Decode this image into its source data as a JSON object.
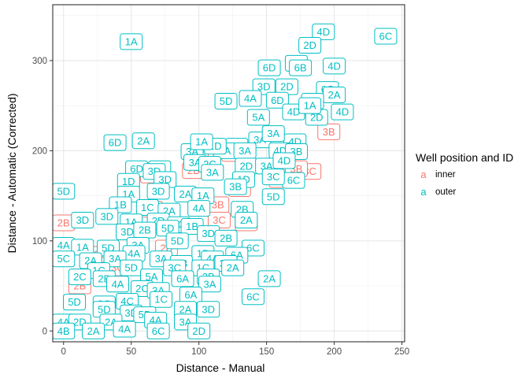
{
  "chart_data": {
    "type": "scatter",
    "title": "",
    "xlabel": "Distance - Manual",
    "ylabel": "Distance - Automatic (Corrected)",
    "xlim": [
      -8,
      252
    ],
    "ylim": [
      -12,
      362
    ],
    "x_ticks": [
      0,
      50,
      100,
      150,
      200,
      250
    ],
    "y_ticks": [
      0,
      100,
      200,
      300
    ],
    "x_tick_labels": [
      "0",
      "50",
      "100",
      "150",
      "200",
      "250"
    ],
    "y_tick_labels": [
      "0",
      "100",
      "200",
      "300"
    ],
    "grid": true,
    "legend": {
      "title": "Well position and ID",
      "placement": "right",
      "key_glyph": "a",
      "entries": [
        {
          "label": "inner",
          "color": "#F8766D"
        },
        {
          "label": "outer",
          "color": "#00BFC4"
        }
      ]
    },
    "colors": {
      "inner": "#F8766D",
      "outer": "#00BFC4"
    },
    "series": [
      {
        "name": "inner",
        "points": [
          {
            "x": 0,
            "y": 120,
            "label": "2B"
          },
          {
            "x": 27,
            "y": 85,
            "label": "2B"
          },
          {
            "x": 65,
            "y": 173,
            "label": "3B"
          },
          {
            "x": 65,
            "y": 135,
            "label": "4C"
          },
          {
            "x": 76,
            "y": 92,
            "label": "2B"
          },
          {
            "x": 96,
            "y": 178,
            "label": "2B"
          },
          {
            "x": 114,
            "y": 140,
            "label": "3B"
          },
          {
            "x": 115,
            "y": 123,
            "label": "3C"
          },
          {
            "x": 115,
            "y": 200,
            "label": "3B"
          },
          {
            "x": 125,
            "y": 197,
            "label": "3B"
          },
          {
            "x": 130,
            "y": 158,
            "label": "3C"
          },
          {
            "x": 160,
            "y": 168,
            "label": "3B"
          },
          {
            "x": 182,
            "y": 177,
            "label": "3C"
          },
          {
            "x": 196,
            "y": 221,
            "label": "3B"
          },
          {
            "x": 172,
            "y": 180,
            "label": "3B"
          },
          {
            "x": 88,
            "y": 60,
            "label": "2B"
          },
          {
            "x": 12,
            "y": 50,
            "label": "2B"
          },
          {
            "x": 40,
            "y": 70,
            "label": "3C"
          },
          {
            "x": 55,
            "y": 110,
            "label": "3B"
          },
          {
            "x": 135,
            "y": 120,
            "label": "4C"
          }
        ]
      },
      {
        "name": "outer",
        "points": [
          {
            "x": 50,
            "y": 321,
            "label": "1A"
          },
          {
            "x": 238,
            "y": 327,
            "label": "6C"
          },
          {
            "x": 192,
            "y": 332,
            "label": "4D"
          },
          {
            "x": 182,
            "y": 317,
            "label": "2D"
          },
          {
            "x": 172,
            "y": 297,
            "label": "6D"
          },
          {
            "x": 175,
            "y": 292,
            "label": "6B"
          },
          {
            "x": 200,
            "y": 294,
            "label": "4D"
          },
          {
            "x": 152,
            "y": 292,
            "label": "6D"
          },
          {
            "x": 148,
            "y": 271,
            "label": "3D"
          },
          {
            "x": 165,
            "y": 271,
            "label": "2D"
          },
          {
            "x": 195,
            "y": 268,
            "label": "6C"
          },
          {
            "x": 200,
            "y": 262,
            "label": "2A"
          },
          {
            "x": 138,
            "y": 258,
            "label": "4A"
          },
          {
            "x": 120,
            "y": 255,
            "label": "5D"
          },
          {
            "x": 158,
            "y": 256,
            "label": "6D"
          },
          {
            "x": 184,
            "y": 255,
            "label": "4A"
          },
          {
            "x": 170,
            "y": 243,
            "label": "4D"
          },
          {
            "x": 206,
            "y": 243,
            "label": "4D"
          },
          {
            "x": 187,
            "y": 237,
            "label": "2D"
          },
          {
            "x": 144,
            "y": 237,
            "label": "5A"
          },
          {
            "x": 182,
            "y": 250,
            "label": "1A"
          },
          {
            "x": 145,
            "y": 212,
            "label": "3A"
          },
          {
            "x": 171,
            "y": 210,
            "label": "4D"
          },
          {
            "x": 155,
            "y": 219,
            "label": "3A"
          },
          {
            "x": 128,
            "y": 205,
            "label": "2B"
          },
          {
            "x": 38,
            "y": 209,
            "label": "6D"
          },
          {
            "x": 59,
            "y": 211,
            "label": "2A"
          },
          {
            "x": 95,
            "y": 199,
            "label": "3A"
          },
          {
            "x": 119,
            "y": 200,
            "label": "2A"
          },
          {
            "x": 112,
            "y": 205,
            "label": "1D"
          },
          {
            "x": 102,
            "y": 210,
            "label": "1A"
          },
          {
            "x": 160,
            "y": 200,
            "label": "4D"
          },
          {
            "x": 172,
            "y": 199,
            "label": "3B"
          },
          {
            "x": 134,
            "y": 200,
            "label": "3A"
          },
          {
            "x": 97,
            "y": 187,
            "label": "3A"
          },
          {
            "x": 108,
            "y": 185,
            "label": "2C"
          },
          {
            "x": 135,
            "y": 183,
            "label": "2D"
          },
          {
            "x": 150,
            "y": 183,
            "label": "3A"
          },
          {
            "x": 163,
            "y": 189,
            "label": "4D"
          },
          {
            "x": 54,
            "y": 180,
            "label": "6D"
          },
          {
            "x": 71,
            "y": 180,
            "label": "3D"
          },
          {
            "x": 67,
            "y": 177,
            "label": "3D"
          },
          {
            "x": 48,
            "y": 166,
            "label": "1D"
          },
          {
            "x": 75,
            "y": 168,
            "label": "3D"
          },
          {
            "x": 110,
            "y": 176,
            "label": "3A"
          },
          {
            "x": 133,
            "y": 168,
            "label": "1D"
          },
          {
            "x": 127,
            "y": 160,
            "label": "3B"
          },
          {
            "x": 170,
            "y": 167,
            "label": "6C"
          },
          {
            "x": 155,
            "y": 171,
            "label": "3C"
          },
          {
            "x": 155,
            "y": 149,
            "label": "5D"
          },
          {
            "x": 0,
            "y": 155,
            "label": "5D"
          },
          {
            "x": 48,
            "y": 152,
            "label": "1A"
          },
          {
            "x": 70,
            "y": 155,
            "label": "3D"
          },
          {
            "x": 90,
            "y": 152,
            "label": "2A"
          },
          {
            "x": 103,
            "y": 150,
            "label": "1A"
          },
          {
            "x": 42,
            "y": 140,
            "label": "1B"
          },
          {
            "x": 62,
            "y": 137,
            "label": "1C"
          },
          {
            "x": 78,
            "y": 133,
            "label": "2A"
          },
          {
            "x": 100,
            "y": 136,
            "label": "4A"
          },
          {
            "x": 132,
            "y": 135,
            "label": "2B"
          },
          {
            "x": 14,
            "y": 123,
            "label": "3D"
          },
          {
            "x": 32,
            "y": 127,
            "label": "3D"
          },
          {
            "x": 50,
            "y": 121,
            "label": "1A"
          },
          {
            "x": 70,
            "y": 122,
            "label": "2D"
          },
          {
            "x": 85,
            "y": 118,
            "label": "1C"
          },
          {
            "x": 135,
            "y": 123,
            "label": "2A"
          },
          {
            "x": 77,
            "y": 114,
            "label": "5D"
          },
          {
            "x": 95,
            "y": 116,
            "label": "1B"
          },
          {
            "x": 47,
            "y": 110,
            "label": "3D"
          },
          {
            "x": 107,
            "y": 108,
            "label": "3D"
          },
          {
            "x": 60,
            "y": 112,
            "label": "2B"
          },
          {
            "x": 0,
            "y": 95,
            "label": "4A"
          },
          {
            "x": 14,
            "y": 93,
            "label": "1A"
          },
          {
            "x": 33,
            "y": 92,
            "label": "5D"
          },
          {
            "x": 55,
            "y": 95,
            "label": "3A"
          },
          {
            "x": 84,
            "y": 100,
            "label": "5D"
          },
          {
            "x": 120,
            "y": 103,
            "label": "2B"
          },
          {
            "x": 140,
            "y": 92,
            "label": "6C"
          },
          {
            "x": 52,
            "y": 86,
            "label": "4A"
          },
          {
            "x": 72,
            "y": 80,
            "label": "3A"
          },
          {
            "x": 103,
            "y": 86,
            "label": "1B"
          },
          {
            "x": 128,
            "y": 84,
            "label": "6A"
          },
          {
            "x": 0,
            "y": 80,
            "label": "5C"
          },
          {
            "x": 20,
            "y": 78,
            "label": "2A"
          },
          {
            "x": 38,
            "y": 80,
            "label": "3A"
          },
          {
            "x": 87,
            "y": 75,
            "label": "4B"
          },
          {
            "x": 110,
            "y": 80,
            "label": "4A"
          },
          {
            "x": 120,
            "y": 75,
            "label": "3C"
          },
          {
            "x": 26,
            "y": 67,
            "label": "1C"
          },
          {
            "x": 50,
            "y": 70,
            "label": "5D"
          },
          {
            "x": 82,
            "y": 70,
            "label": "3C"
          },
          {
            "x": 103,
            "y": 70,
            "label": "1C"
          },
          {
            "x": 125,
            "y": 70,
            "label": "2A"
          },
          {
            "x": 65,
            "y": 60,
            "label": "5A"
          },
          {
            "x": 88,
            "y": 58,
            "label": "6A"
          },
          {
            "x": 107,
            "y": 60,
            "label": "2B"
          },
          {
            "x": 152,
            "y": 58,
            "label": "2A"
          },
          {
            "x": 12,
            "y": 60,
            "label": "2C"
          },
          {
            "x": 30,
            "y": 58,
            "label": "2B"
          },
          {
            "x": 40,
            "y": 52,
            "label": "4A"
          },
          {
            "x": 108,
            "y": 52,
            "label": "3A"
          },
          {
            "x": 58,
            "y": 47,
            "label": "2C"
          },
          {
            "x": 70,
            "y": 45,
            "label": "3A"
          },
          {
            "x": 94,
            "y": 40,
            "label": "6A"
          },
          {
            "x": 140,
            "y": 38,
            "label": "6C"
          },
          {
            "x": 8,
            "y": 32,
            "label": "5D"
          },
          {
            "x": 30,
            "y": 30,
            "label": "3C"
          },
          {
            "x": 47,
            "y": 33,
            "label": "4C"
          },
          {
            "x": 72,
            "y": 35,
            "label": "1C"
          },
          {
            "x": 90,
            "y": 24,
            "label": "2A"
          },
          {
            "x": 107,
            "y": 24,
            "label": "3D"
          },
          {
            "x": 30,
            "y": 24,
            "label": "5D"
          },
          {
            "x": 50,
            "y": 20,
            "label": "3D"
          },
          {
            "x": 60,
            "y": 18,
            "label": "5D"
          },
          {
            "x": 0,
            "y": 10,
            "label": "4A"
          },
          {
            "x": 12,
            "y": 10,
            "label": "2D"
          },
          {
            "x": 35,
            "y": 10,
            "label": "2A"
          },
          {
            "x": 68,
            "y": 12,
            "label": "4A"
          },
          {
            "x": 90,
            "y": 10,
            "label": "3A"
          },
          {
            "x": 70,
            "y": 0,
            "label": "6C"
          },
          {
            "x": 100,
            "y": 0,
            "label": "2D"
          },
          {
            "x": 22,
            "y": 0,
            "label": "2A"
          },
          {
            "x": 45,
            "y": 2,
            "label": "4A"
          },
          {
            "x": 0,
            "y": 0,
            "label": "4B"
          }
        ]
      }
    ]
  }
}
